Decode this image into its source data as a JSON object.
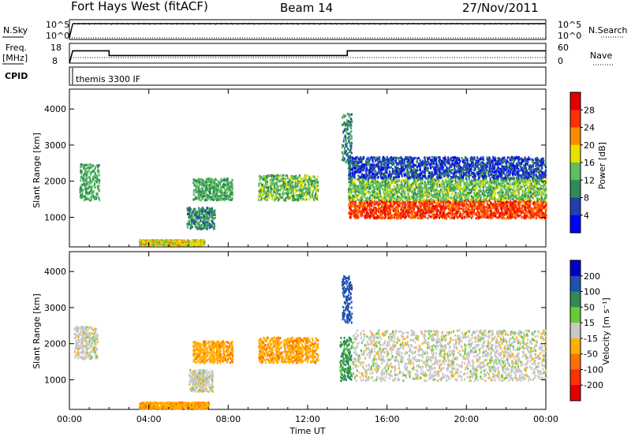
{
  "header": {
    "station": "Fort Hays West (fitACF)",
    "beam": "Beam 14",
    "date": "27/Nov/2011"
  },
  "labels": {
    "nsky": "N.Sky",
    "nsearch": "N.Search",
    "freq": "Freq.",
    "freq_unit": "[MHz]",
    "nave": "Nave",
    "cpid": "CPID",
    "cpid_value": "themis 3300 IF",
    "exp10_5_left": "10^5",
    "exp10_0_left": "10^0",
    "exp10_5_right": "10^5",
    "exp10_0_right": "10^0"
  },
  "chart_data": [
    {
      "type": "line",
      "panel": "noise",
      "series": [
        {
          "name": "N.Sky",
          "x": [
            "00:00",
            "00:10",
            "24:00"
          ],
          "y": [
            1,
            30000,
            30000
          ]
        },
        {
          "name": "N.Search",
          "x": [
            "00:00",
            "24:00"
          ],
          "y": [
            1,
            1
          ]
        }
      ],
      "ylim_labels": [
        "10^0",
        "10^5"
      ]
    },
    {
      "type": "line",
      "panel": "frequency",
      "yticks_left": [
        8,
        18
      ],
      "yticks_right": [
        0,
        60
      ],
      "series": [
        {
          "name": "Freq.",
          "x": [
            "00:00",
            "00:10",
            "02:00",
            "02:00",
            "14:00",
            "14:00",
            "24:00"
          ],
          "y": [
            8,
            14.5,
            14.5,
            12,
            12,
            14.5,
            14.5
          ]
        },
        {
          "name": "Nave",
          "x": [
            "00:00",
            "24:00"
          ],
          "y": [
            22,
            22
          ]
        }
      ]
    },
    {
      "type": "heatmap",
      "panel": "power",
      "xlabel": "",
      "ylabel": "Slant Range [km]",
      "xticks": [
        "00:00",
        "04:00",
        "08:00",
        "12:00",
        "16:00",
        "20:00",
        "00:00"
      ],
      "yticks": [
        1000,
        2000,
        3000,
        4000
      ],
      "ylim": [
        180,
        4550
      ],
      "xlim": [
        0,
        24
      ],
      "colorbar": {
        "label": "Power [dB]",
        "ticks": [
          4,
          8,
          12,
          16,
          20,
          24,
          28
        ],
        "colors": [
          "#0000ff",
          "#2040b0",
          "#2e8b57",
          "#5fbf5f",
          "#e8e000",
          "#ff8c00",
          "#ff3000",
          "#e00000"
        ]
      },
      "regions": [
        {
          "t": [
            0.5,
            1.5
          ],
          "r": [
            1500,
            2500
          ],
          "level": 12
        },
        {
          "t": [
            3.5,
            6.8
          ],
          "r": [
            250,
            400
          ],
          "level": 18
        },
        {
          "t": [
            5.9,
            7.3
          ],
          "r": [
            700,
            1300
          ],
          "level": 10
        },
        {
          "t": [
            6.2,
            8.2
          ],
          "r": [
            1500,
            2100
          ],
          "level": 12
        },
        {
          "t": [
            9.5,
            12.5
          ],
          "r": [
            1500,
            2200
          ],
          "level": 14
        },
        {
          "t": [
            13.7,
            14.2
          ],
          "r": [
            2500,
            3900
          ],
          "level": 10
        },
        {
          "t": [
            14.0,
            24.0
          ],
          "r": [
            1000,
            1500
          ],
          "level": 26
        },
        {
          "t": [
            14.0,
            24.0
          ],
          "r": [
            1500,
            2100
          ],
          "level": 14
        },
        {
          "t": [
            14.0,
            24.0
          ],
          "r": [
            2100,
            2700
          ],
          "level": 6
        }
      ]
    },
    {
      "type": "heatmap",
      "panel": "velocity",
      "xlabel": "Time UT",
      "ylabel": "Slant Range [km]",
      "xticks": [
        "00:00",
        "04:00",
        "08:00",
        "12:00",
        "16:00",
        "20:00",
        "00:00"
      ],
      "yticks": [
        1000,
        2000,
        3000,
        4000
      ],
      "ylim": [
        180,
        4550
      ],
      "xlim": [
        0,
        24
      ],
      "colorbar": {
        "label": "Velocity [m s⁻¹]",
        "ticks": [
          200,
          100,
          50,
          15,
          -15,
          -50,
          -100,
          -200
        ],
        "colors": [
          "#0000c0",
          "#2050b0",
          "#2e8b57",
          "#66cc33",
          "#c8c8c8",
          "#ffb000",
          "#ff7000",
          "#ff3000",
          "#e00000"
        ]
      },
      "regions": [
        {
          "t": [
            0.2,
            1.4
          ],
          "r": [
            1600,
            2500
          ],
          "value": 0
        },
        {
          "t": [
            3.5,
            7.0
          ],
          "r": [
            230,
            400
          ],
          "value": -40
        },
        {
          "t": [
            6.0,
            7.2
          ],
          "r": [
            700,
            1300
          ],
          "value": 0
        },
        {
          "t": [
            6.2,
            8.2
          ],
          "r": [
            1500,
            2100
          ],
          "value": -40
        },
        {
          "t": [
            9.5,
            12.5
          ],
          "r": [
            1500,
            2200
          ],
          "value": -40
        },
        {
          "t": [
            13.6,
            14.2
          ],
          "r": [
            1000,
            2200
          ],
          "value": 60
        },
        {
          "t": [
            13.7,
            14.2
          ],
          "r": [
            2600,
            3900
          ],
          "value": 150
        },
        {
          "t": [
            14.2,
            24.0
          ],
          "r": [
            1000,
            2400
          ],
          "value": 0
        }
      ]
    }
  ]
}
